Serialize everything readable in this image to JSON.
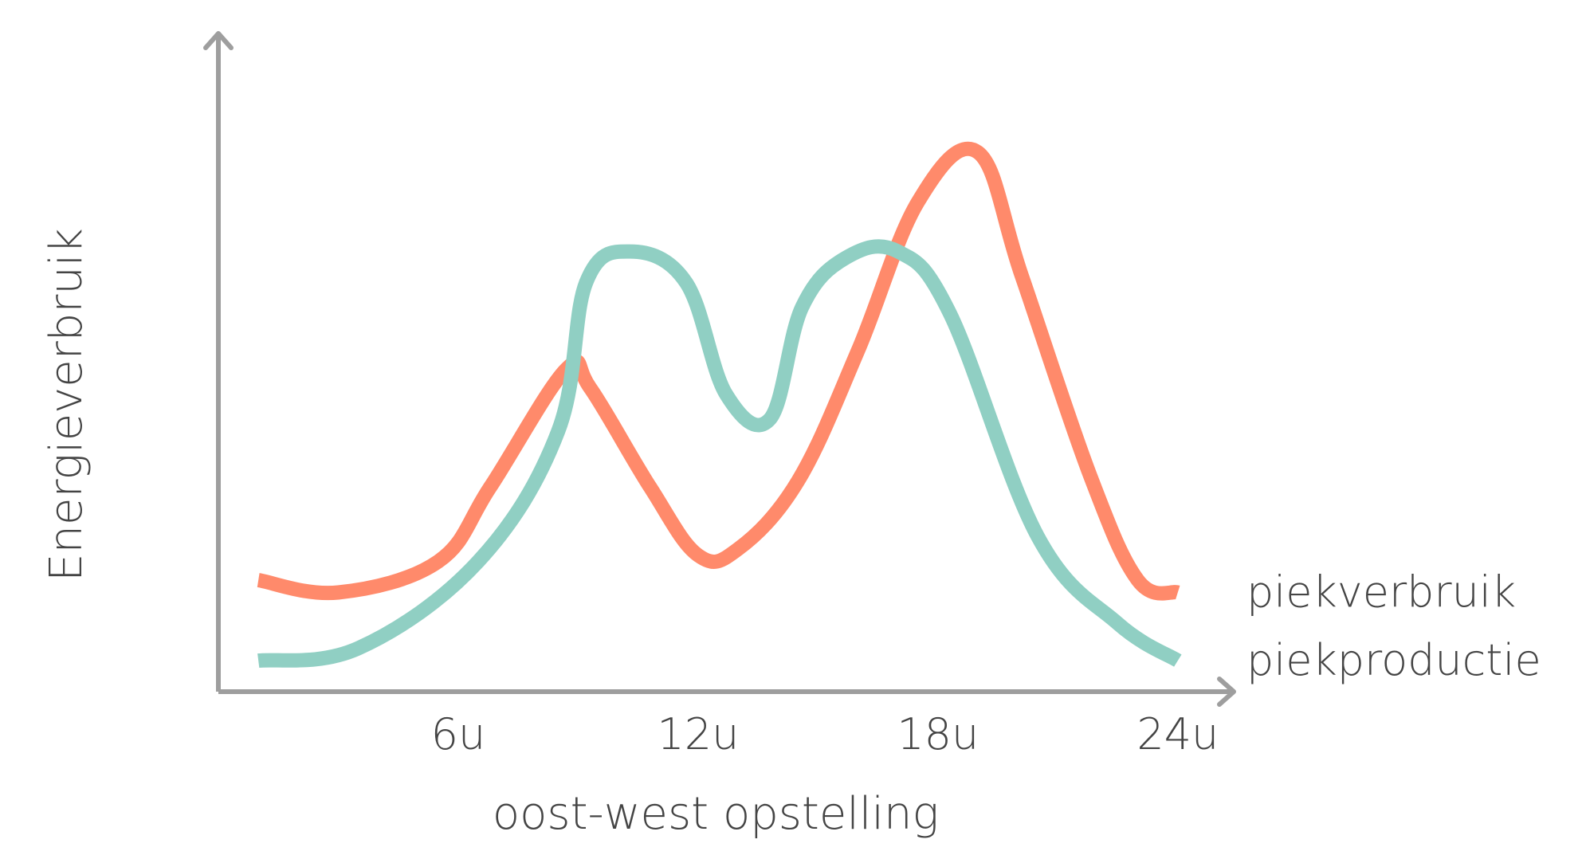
{
  "chart_data": {
    "type": "line",
    "title": "",
    "xlabel": "oost-west opstelling",
    "ylabel": "Energieverbruik",
    "x_ticks": [
      {
        "label": "6u",
        "value": 6
      },
      {
        "label": "12u",
        "value": 12
      },
      {
        "label": "18u",
        "value": 18
      },
      {
        "label": "24u",
        "value": 24
      }
    ],
    "xlim": [
      0,
      25.4
    ],
    "ylim": [
      0,
      100
    ],
    "grid": false,
    "legend": "right, at line ends",
    "series": [
      {
        "name": "piekverbruik",
        "color": "#FF8A6B",
        "points": [
          [
            1,
            18
          ],
          [
            3,
            16
          ],
          [
            5.5,
            21
          ],
          [
            6.8,
            33
          ],
          [
            8.7,
            52
          ],
          [
            9.3,
            49
          ],
          [
            10.8,
            33
          ],
          [
            12,
            22
          ],
          [
            13,
            23
          ],
          [
            14.5,
            34
          ],
          [
            16,
            55
          ],
          [
            17.5,
            79
          ],
          [
            19,
            87
          ],
          [
            20.1,
            67
          ],
          [
            21.8,
            35
          ],
          [
            23,
            18
          ],
          [
            24,
            16
          ]
        ]
      },
      {
        "name": "piekproductie",
        "color": "#90CFC3",
        "points": [
          [
            1,
            5
          ],
          [
            3.5,
            7
          ],
          [
            6.5,
            21
          ],
          [
            8.5,
            42
          ],
          [
            9.2,
            66
          ],
          [
            10.3,
            71
          ],
          [
            11.7,
            66
          ],
          [
            12.7,
            48
          ],
          [
            13.8,
            44
          ],
          [
            14.6,
            62
          ],
          [
            15.7,
            70
          ],
          [
            17,
            71
          ],
          [
            18.3,
            61
          ],
          [
            20.5,
            25
          ],
          [
            22.5,
            11
          ],
          [
            24,
            5
          ]
        ]
      }
    ]
  }
}
